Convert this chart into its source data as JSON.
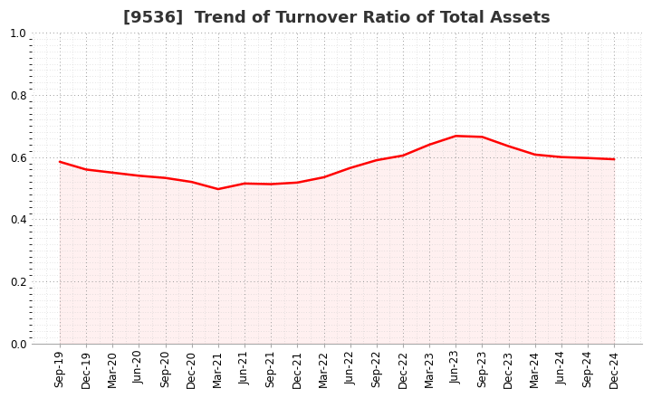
{
  "title": "[9536]  Trend of Turnover Ratio of Total Assets",
  "labels": [
    "Sep-19",
    "Dec-19",
    "Mar-20",
    "Jun-20",
    "Sep-20",
    "Dec-20",
    "Mar-21",
    "Jun-21",
    "Sep-21",
    "Dec-21",
    "Mar-22",
    "Jun-22",
    "Sep-22",
    "Dec-22",
    "Mar-23",
    "Jun-23",
    "Sep-23",
    "Dec-23",
    "Mar-24",
    "Jun-24",
    "Sep-24",
    "Dec-24"
  ],
  "values": [
    0.585,
    0.56,
    0.55,
    0.54,
    0.533,
    0.52,
    0.497,
    0.515,
    0.513,
    0.518,
    0.535,
    0.565,
    0.59,
    0.605,
    0.64,
    0.668,
    0.665,
    0.635,
    0.608,
    0.6,
    0.597,
    0.593
  ],
  "line_color": "#ff0000",
  "fill_color": "#ffb0b0",
  "ylim": [
    0.0,
    1.0
  ],
  "yticks": [
    0.0,
    0.2,
    0.4,
    0.6,
    0.8,
    1.0
  ],
  "background_color": "#ffffff",
  "grid_color_major": "#999999",
  "grid_color_minor": "#cccccc",
  "title_fontsize": 13,
  "title_color": "#333333",
  "tick_fontsize": 8.5
}
